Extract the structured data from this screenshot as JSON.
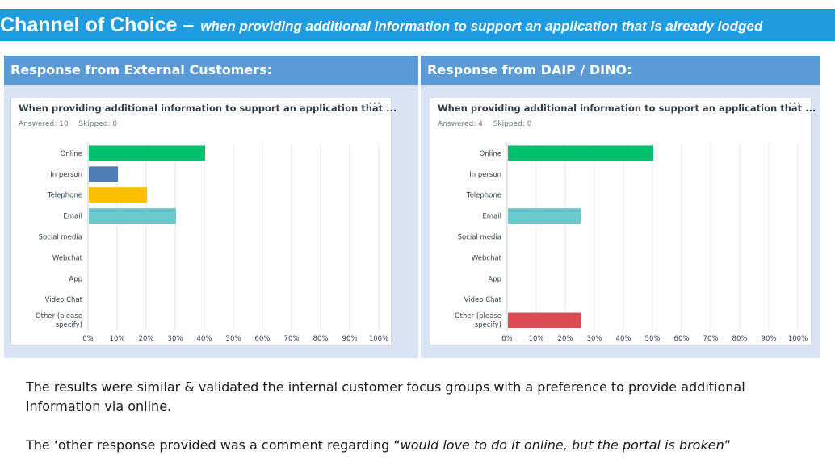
{
  "slide": {
    "title": "Channel of Choice –",
    "subtitle": "when providing additional information to support an application that is already lodged"
  },
  "panels": [
    {
      "header": "Response from External Customers:"
    },
    {
      "header": "Response from DAIP / DINO:"
    }
  ],
  "chart_data": [
    {
      "type": "bar",
      "orientation": "horizontal",
      "title": "When providing additional information to support an application that ...",
      "answered": "Answered: 10",
      "skipped": "Skipped: 0",
      "categories": [
        "Online",
        "In person",
        "Telephone",
        "Email",
        "Social media",
        "Webchat",
        "App",
        "Video Chat",
        "Other (please specify)"
      ],
      "values": [
        40,
        10,
        20,
        30,
        0,
        0,
        0,
        0,
        0
      ],
      "colors": [
        "#00bf6f",
        "#507cb6",
        "#f9be00",
        "#6bc8cd",
        "#ff8b4f",
        "#7d5ba6",
        "#e05c69",
        "#a8a8a8",
        "#dc4a53"
      ],
      "xlim": [
        0,
        100
      ],
      "xticks": [
        "0%",
        "10%",
        "20%",
        "30%",
        "40%",
        "50%",
        "60%",
        "70%",
        "80%",
        "90%",
        "100%"
      ],
      "grid": true
    },
    {
      "type": "bar",
      "orientation": "horizontal",
      "title": "When providing additional information to support an application that ...",
      "answered": "Answered: 4",
      "skipped": "Skipped: 0",
      "categories": [
        "Online",
        "In person",
        "Telephone",
        "Email",
        "Social media",
        "Webchat",
        "App",
        "Video Chat",
        "Other (please specify)"
      ],
      "values": [
        50,
        0,
        0,
        25,
        0,
        0,
        0,
        0,
        25
      ],
      "colors": [
        "#00bf6f",
        "#507cb6",
        "#f9be00",
        "#6bc8cd",
        "#ff8b4f",
        "#7d5ba6",
        "#e05c69",
        "#a8a8a8",
        "#dc4a53"
      ],
      "xlim": [
        0,
        100
      ],
      "xticks": [
        "0%",
        "10%",
        "20%",
        "30%",
        "40%",
        "50%",
        "60%",
        "70%",
        "80%",
        "90%",
        "100%"
      ],
      "grid": true
    }
  ],
  "more_icon": "ellipsis-icon",
  "more_glyph": "...",
  "text": {
    "p1": "The results were similar & validated the internal customer focus groups with a preference to provide additional information via online.",
    "p2_start": "The ‘other response provided was a comment regarding “",
    "p2_italic": "would love to do it online, but the portal is broken",
    "p2_end": "”"
  }
}
